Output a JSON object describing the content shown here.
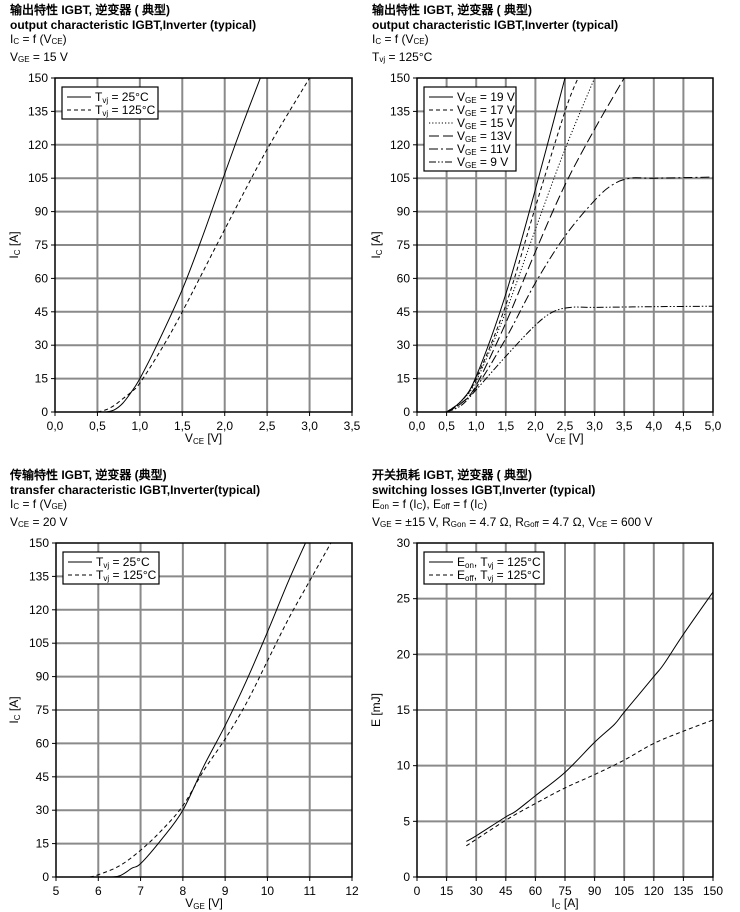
{
  "chart_data": [
    {
      "type": "line",
      "header": [
        "输出特性 IGBT, 逆变器 ( 典型)",
        "output characteristic IGBT,Inverter (typical)",
        "I_{C} = f (V_{CE})",
        "V_{GE} = 15 V"
      ],
      "xlabel": "V_{CE} [V]",
      "ylabel": "I_{C} [A]",
      "xlim": [
        0,
        3.5
      ],
      "ylim": [
        0,
        150
      ],
      "xticks": [
        0,
        0.5,
        1,
        1.5,
        2,
        2.5,
        3,
        3.5
      ],
      "xtick_labels": [
        "0,0",
        "0,5",
        "1,0",
        "1,5",
        "2,0",
        "2,5",
        "3,0",
        "3,5"
      ],
      "yticks": [
        0,
        15,
        30,
        45,
        60,
        75,
        90,
        105,
        120,
        135,
        150
      ],
      "ytick_labels": [
        "0",
        "15",
        "30",
        "45",
        "60",
        "75",
        "90",
        "105",
        "120",
        "135",
        "150"
      ],
      "grid": true,
      "legend_position": "top-left",
      "series": [
        {
          "name": "T_{vj} = 25°C",
          "style": "solid",
          "x": [
            0.6,
            0.7,
            0.8,
            0.9,
            1.0,
            1.2,
            1.5,
            1.75,
            2.0,
            2.2,
            2.42
          ],
          "y": [
            0,
            1,
            4,
            9,
            15,
            30,
            55,
            80,
            107,
            128,
            150
          ]
        },
        {
          "name": "T_{vj} = 125°C",
          "style": "dashed",
          "x": [
            0.5,
            0.6,
            0.7,
            0.8,
            0.9,
            1.0,
            1.25,
            1.5,
            2.0,
            2.5,
            3.0
          ],
          "y": [
            0,
            1,
            3,
            6,
            9,
            13,
            28,
            45,
            82,
            118,
            150
          ]
        }
      ]
    },
    {
      "type": "line",
      "header": [
        "输出特性 IGBT, 逆变器 ( 典型)",
        "output characteristic IGBT,Inverter (typical)",
        "I_{C} = f (V_{CE})",
        "T_{vj} = 125°C"
      ],
      "xlabel": "V_{CE} [V]",
      "ylabel": "I_{C} [A]",
      "xlim": [
        0,
        5
      ],
      "ylim": [
        0,
        150
      ],
      "xticks": [
        0,
        0.5,
        1,
        1.5,
        2,
        2.5,
        3,
        3.5,
        4,
        4.5,
        5
      ],
      "xtick_labels": [
        "0,0",
        "0,5",
        "1,0",
        "1,5",
        "2,0",
        "2,5",
        "3,0",
        "3,5",
        "4,0",
        "4,5",
        "5,0"
      ],
      "yticks": [
        0,
        15,
        30,
        45,
        60,
        75,
        90,
        105,
        120,
        135,
        150
      ],
      "ytick_labels": [
        "0",
        "15",
        "30",
        "45",
        "60",
        "75",
        "90",
        "105",
        "120",
        "135",
        "150"
      ],
      "grid": true,
      "legend_position": "top-left",
      "series": [
        {
          "name": "V_{GE} = 19 V",
          "style": "solid",
          "x": [
            0.5,
            0.75,
            1.0,
            1.5,
            2.0,
            2.5
          ],
          "y": [
            0,
            5,
            16,
            53,
            100,
            150
          ]
        },
        {
          "name": "V_{GE} = 17 V",
          "style": "dashed",
          "x": [
            0.5,
            0.75,
            1.0,
            1.5,
            2.0,
            2.5,
            2.72
          ],
          "y": [
            0,
            5,
            15,
            48,
            92,
            135,
            150
          ]
        },
        {
          "name": "V_{GE} = 15 V",
          "style": "dotted",
          "x": [
            0.5,
            0.75,
            1.0,
            1.5,
            2.0,
            2.5,
            3.0
          ],
          "y": [
            0,
            5,
            14,
            45,
            82,
            118,
            150
          ]
        },
        {
          "name": "V_{GE} = 13V",
          "style": "longdash",
          "x": [
            0.5,
            0.75,
            1.0,
            1.5,
            2.0,
            2.5,
            3.0,
            3.5
          ],
          "y": [
            0,
            4,
            12,
            40,
            72,
            102,
            127,
            150
          ]
        },
        {
          "name": "V_{GE} = 11V",
          "style": "dashdot",
          "x": [
            0.5,
            0.75,
            1.0,
            1.5,
            2.0,
            2.5,
            3.0,
            3.3,
            3.6,
            4.0,
            5.0
          ],
          "y": [
            0,
            4,
            11,
            33,
            58,
            79,
            95,
            102,
            105,
            105,
            105.5
          ]
        },
        {
          "name": "V_{GE} =  9 V",
          "style": "dashdotdot",
          "x": [
            0.5,
            0.75,
            1.0,
            1.5,
            2.0,
            2.3,
            2.6,
            3.0,
            4.0,
            5.0
          ],
          "y": [
            0,
            3,
            10,
            25,
            39,
            45,
            47,
            47,
            47.3,
            47.5
          ]
        }
      ]
    },
    {
      "type": "line",
      "header": [
        "传输特性 IGBT, 逆变器 (典型)",
        "transfer characteristic  IGBT,Inverter(typical)",
        "I_{C} = f (V_{GE})",
        "V_{CE} = 20 V"
      ],
      "xlabel": "V_{GE} [V]",
      "ylabel": "I_{C} [A]",
      "xlim": [
        5,
        12
      ],
      "ylim": [
        0,
        150
      ],
      "xticks": [
        5,
        6,
        7,
        8,
        9,
        10,
        11,
        12
      ],
      "xtick_labels": [
        "5",
        "6",
        "7",
        "8",
        "9",
        "10",
        "11",
        "12"
      ],
      "yticks": [
        0,
        15,
        30,
        45,
        60,
        75,
        90,
        105,
        120,
        135,
        150
      ],
      "ytick_labels": [
        "0",
        "15",
        "30",
        "45",
        "60",
        "75",
        "90",
        "105",
        "120",
        "135",
        "150"
      ],
      "grid": true,
      "legend_position": "top-left",
      "series": [
        {
          "name": "T_{vj} = 25°C",
          "style": "solid",
          "x": [
            5.6,
            6.2,
            6.5,
            6.8,
            7.0,
            7.5,
            8.0,
            8.5,
            9.0,
            9.5,
            10.0,
            10.5,
            10.9
          ],
          "y": [
            0,
            0,
            0.5,
            4,
            6,
            17,
            30,
            50,
            68,
            88,
            110,
            133,
            150
          ]
        },
        {
          "name": "T_{vj} = 125°C",
          "style": "dashed",
          "x": [
            5.8,
            6.0,
            6.5,
            7.0,
            7.5,
            8.0,
            8.5,
            9.0,
            9.5,
            10.0,
            10.5,
            11.0,
            11.5
          ],
          "y": [
            0,
            1,
            5,
            12,
            21,
            32,
            48,
            62,
            78,
            97,
            116,
            133,
            150
          ]
        }
      ]
    },
    {
      "type": "line",
      "header": [
        "开关损耗 IGBT, 逆变器 ( 典型)",
        "switching losses  IGBT,Inverter (typical)",
        "E_{on} = f (I_{C}), E_{off} = f (I_{C})",
        "V_{GE} = ±15 V, R_{Gon} = 4.7 Ω, R_{Goff} = 4.7 Ω, V_{CE} = 600 V"
      ],
      "xlabel": "I_{C} [A]",
      "ylabel": "E [mJ]",
      "xlim": [
        0,
        150
      ],
      "ylim": [
        0,
        30
      ],
      "xticks": [
        0,
        15,
        30,
        45,
        60,
        75,
        90,
        105,
        120,
        135,
        150
      ],
      "xtick_labels": [
        "0",
        "15",
        "30",
        "45",
        "60",
        "75",
        "90",
        "105",
        "120",
        "135",
        "150"
      ],
      "yticks": [
        0,
        5,
        10,
        15,
        20,
        25,
        30
      ],
      "ytick_labels": [
        "0",
        "5",
        "10",
        "15",
        "20",
        "25",
        "30"
      ],
      "grid": true,
      "legend_position": "top-left",
      "series": [
        {
          "name": "E_{on}, T_{vj} = 125°C",
          "style": "solid",
          "x": [
            25,
            30,
            45,
            50,
            60,
            75,
            90,
            100,
            105,
            120,
            125,
            135,
            150
          ],
          "y": [
            3.2,
            3.7,
            5.4,
            5.9,
            7.3,
            9.4,
            12.1,
            13.7,
            14.8,
            18,
            19.1,
            21.8,
            25.6
          ]
        },
        {
          "name": "E_{off}, T_{vj} = 125°C",
          "style": "dashed",
          "x": [
            25,
            45,
            60,
            75,
            90,
            105,
            120,
            135,
            150
          ],
          "y": [
            2.8,
            5.1,
            6.6,
            8,
            9.2,
            10.5,
            12,
            13.1,
            14.1
          ]
        }
      ]
    }
  ]
}
